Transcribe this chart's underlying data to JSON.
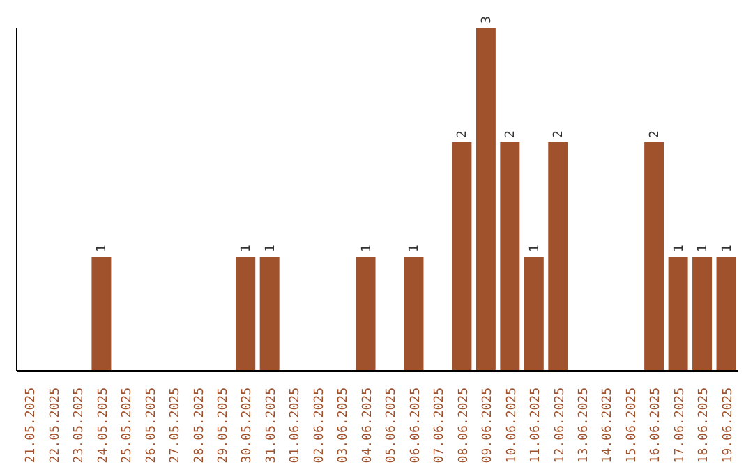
{
  "chart_data": {
    "type": "bar",
    "categories": [
      "21.05.2025",
      "22.05.2025",
      "23.05.2025",
      "24.05.2025",
      "25.05.2025",
      "26.05.2025",
      "27.05.2025",
      "28.05.2025",
      "29.05.2025",
      "30.05.2025",
      "31.05.2025",
      "01.06.2025",
      "02.06.2025",
      "03.06.2025",
      "04.06.2025",
      "05.06.2025",
      "06.06.2025",
      "07.06.2025",
      "08.06.2025",
      "09.06.2025",
      "10.06.2025",
      "11.06.2025",
      "12.06.2025",
      "13.06.2025",
      "14.06.2025",
      "15.06.2025",
      "16.06.2025",
      "17.06.2025",
      "18.06.2025",
      "19.06.2025"
    ],
    "values": [
      0,
      0,
      0,
      1,
      0,
      0,
      0,
      0,
      0,
      1,
      1,
      0,
      0,
      0,
      1,
      0,
      1,
      0,
      2,
      3,
      2,
      1,
      2,
      0,
      0,
      0,
      2,
      1,
      1,
      1
    ],
    "value_labels": [
      null,
      null,
      null,
      "1",
      null,
      null,
      null,
      null,
      null,
      "1",
      "1",
      null,
      null,
      null,
      "1",
      null,
      "1",
      null,
      "2",
      "3",
      "2",
      "1",
      "2",
      null,
      null,
      null,
      "2",
      "1",
      "1",
      "1"
    ],
    "color": "#a0522d",
    "ylim": [
      0,
      3
    ],
    "tick_labels": "x"
  }
}
